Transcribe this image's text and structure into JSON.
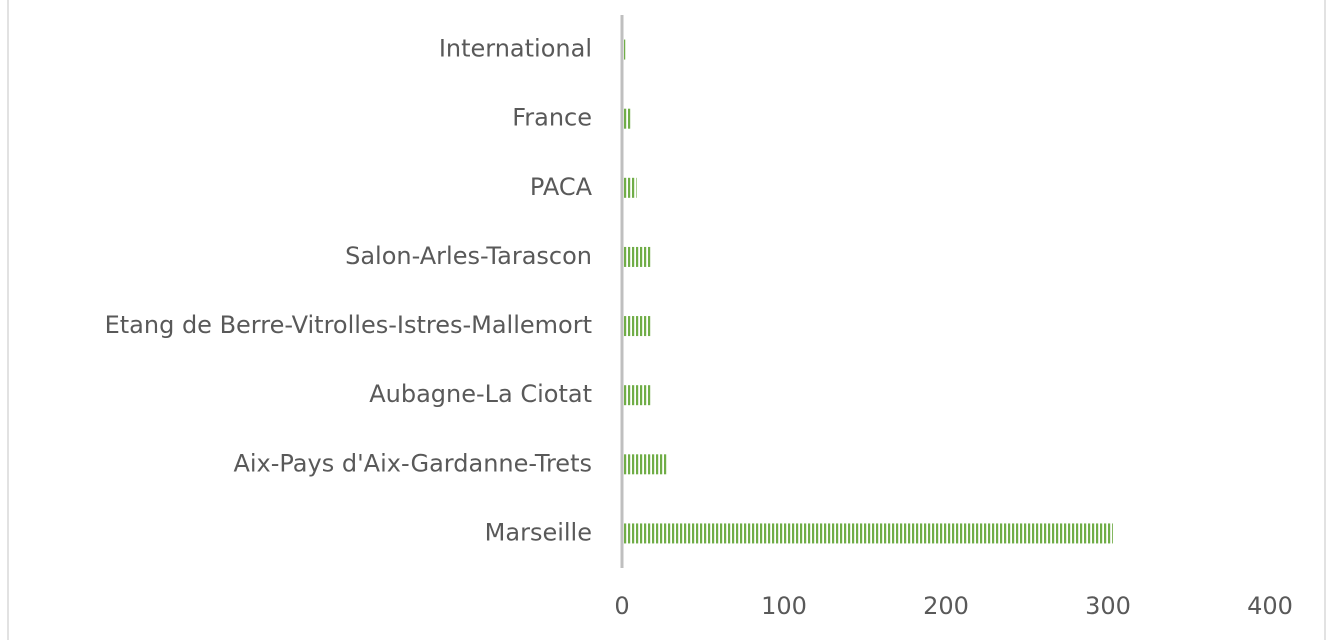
{
  "chart_data": {
    "type": "bar",
    "orientation": "horizontal",
    "categories": [
      "International",
      "France",
      "PACA",
      "Salon-Arles-Tarascon",
      "Etang de Berre-Vitrolles-Istres-Mallemort",
      "Aubagne-La Ciotat",
      "Aix-Pays d'Aix-Gardanne-Trets",
      "Marseille"
    ],
    "values": [
      2,
      6,
      9,
      18,
      18,
      18,
      28,
      303
    ],
    "color": "#70ad47",
    "xlim": [
      0,
      400
    ],
    "xticks": [
      0,
      100,
      200,
      300,
      400
    ],
    "grid": false
  }
}
